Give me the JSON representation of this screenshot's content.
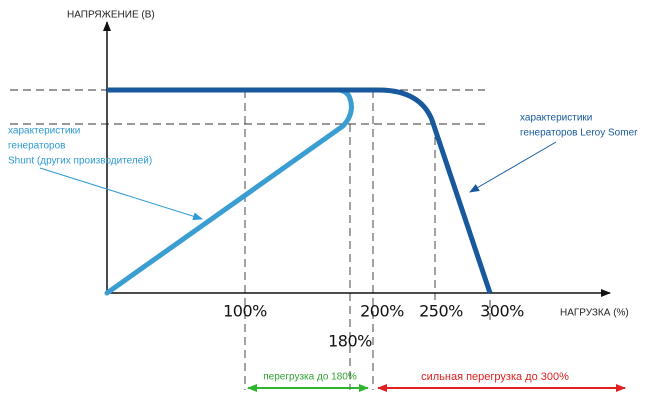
{
  "axes": {
    "y_title": "НАПРЯЖЕНИЕ (В)",
    "x_title": "НАГРУЗКА (%)"
  },
  "ticks": [
    "100%",
    "180%",
    "200%",
    "250%",
    "300%"
  ],
  "notes": {
    "shunt": [
      "характеристики",
      "генераторов",
      "Shunt (других производителей)"
    ],
    "leroy": [
      "характеристики",
      "генераторов Leroy Somer"
    ]
  },
  "ranges": {
    "green": "перегрузка до 180%",
    "red": "сильная перегрузка до 300%"
  }
}
